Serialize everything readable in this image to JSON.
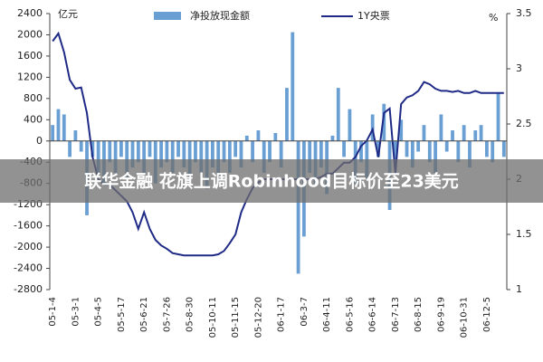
{
  "chart_data": {
    "type": "bar_line",
    "y_unit_label": "亿元",
    "y2_unit_label": "%",
    "categories": [
      "05-1-4",
      null,
      null,
      null,
      "05-3-1",
      null,
      null,
      null,
      "05-4-5",
      null,
      null,
      null,
      "05-5-17",
      null,
      null,
      null,
      "05-6-21",
      null,
      null,
      null,
      "05-7-26",
      null,
      null,
      null,
      "05-8-30",
      null,
      null,
      null,
      "05-10-11",
      null,
      null,
      null,
      "05-11-15",
      null,
      null,
      null,
      "05-12-20",
      null,
      null,
      null,
      "06-1-17",
      null,
      null,
      null,
      "06-3-7",
      null,
      null,
      null,
      "06-4-11",
      null,
      null,
      null,
      "06-5-16",
      null,
      null,
      null,
      "06-6-14",
      null,
      null,
      null,
      "06-7-13",
      null,
      null,
      null,
      "06-8-15",
      null,
      null,
      null,
      "06-9-19",
      null,
      null,
      null,
      "06-10-31",
      null,
      null,
      null,
      "06-12-5",
      null,
      null,
      null
    ],
    "series": [
      {
        "name": "净投放现金额",
        "color": "#6a9fd4",
        "kind": "bar",
        "values": [
          300,
          600,
          500,
          -300,
          200,
          -200,
          -1400,
          -300,
          -600,
          -800,
          -400,
          -600,
          -300,
          -700,
          -500,
          -400,
          -600,
          -300,
          -800,
          -500,
          -400,
          -600,
          -300,
          -500,
          -700,
          -400,
          -600,
          -900,
          -500,
          -700,
          -400,
          -600,
          -300,
          -500,
          100,
          -400,
          200,
          -600,
          -400,
          150,
          -500,
          1000,
          2050,
          -2500,
          -1800,
          -600,
          -800,
          -500,
          -1000,
          100,
          1000,
          -300,
          600,
          -800,
          -400,
          -700,
          500,
          -300,
          700,
          -1300,
          -400,
          400,
          -300,
          -500,
          -200,
          300,
          -400,
          -600,
          500,
          -200,
          200,
          -400,
          300,
          -500,
          200,
          300,
          -300,
          -400,
          900,
          -300
        ]
      },
      {
        "name": "1Y央票",
        "color": "#1f2a86",
        "kind": "line",
        "axis": "y2",
        "values": [
          3.25,
          3.32,
          3.15,
          2.9,
          2.82,
          2.83,
          2.6,
          2.2,
          2.0,
          1.95,
          1.95,
          1.9,
          1.85,
          1.8,
          1.7,
          1.55,
          1.7,
          1.55,
          1.45,
          1.4,
          1.37,
          1.33,
          1.32,
          1.31,
          1.31,
          1.31,
          1.31,
          1.31,
          1.31,
          1.32,
          1.35,
          1.42,
          1.5,
          1.7,
          1.82,
          1.92,
          1.97,
          2.0,
          2.0,
          2.0,
          2.0,
          2.0,
          2.0,
          2.0,
          2.0,
          2.0,
          2.0,
          2.02,
          2.05,
          2.05,
          2.1,
          2.15,
          2.15,
          2.2,
          2.3,
          2.35,
          2.45,
          2.2,
          2.6,
          2.64,
          2.05,
          2.68,
          2.74,
          2.76,
          2.8,
          2.88,
          2.86,
          2.82,
          2.8,
          2.8,
          2.79,
          2.8,
          2.78,
          2.78,
          2.8,
          2.78,
          2.78,
          2.78,
          2.78,
          2.78
        ]
      }
    ],
    "ylim": [
      -2800,
      2400
    ],
    "yticks": [
      -2800,
      -2400,
      -2000,
      -1600,
      -1200,
      -800,
      -400,
      0,
      400,
      800,
      1200,
      1600,
      2000,
      2400
    ],
    "y2lim": [
      1,
      3.5
    ],
    "y2ticks": [
      1,
      1.5,
      2,
      2.5,
      3,
      3.5
    ]
  },
  "caption": "联华金融 花旗上调Robinhood目标价至23美元"
}
